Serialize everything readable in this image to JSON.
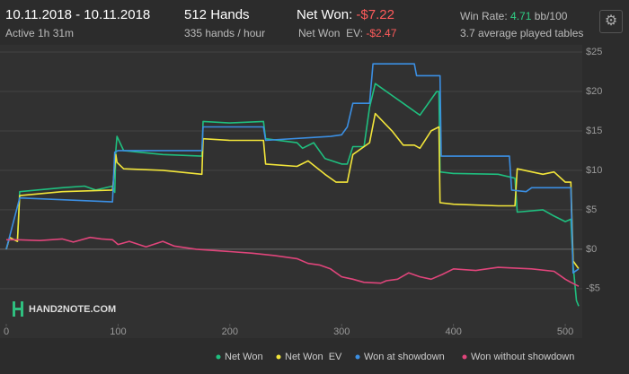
{
  "header": {
    "date_range": "10.11.2018 - 10.11.2018",
    "active": "Active 1h 31m",
    "hands": "512 Hands",
    "hands_per_hour": "335 hands / hour",
    "net_won_label": "Net Won:",
    "net_won": "-$7.22",
    "net_won_ev_label": "Net Won  EV:",
    "net_won_ev": "-$2.47",
    "win_rate_label": "Win Rate:",
    "win_rate": "4.71",
    "win_rate_unit": "bb/100",
    "tables": "3.7 average played tables",
    "logo": "HAND2NOTE.COM"
  },
  "chart_data": {
    "type": "line",
    "xlim": [
      0,
      512
    ],
    "xticks": [
      0,
      100,
      200,
      300,
      400,
      500
    ],
    "ylim": [
      -9,
      25
    ],
    "yticks": [
      {
        "value": 25,
        "label": "$25"
      },
      {
        "value": 20,
        "label": "$20"
      },
      {
        "value": 15,
        "label": "$15"
      },
      {
        "value": 10,
        "label": "$10"
      },
      {
        "value": 5,
        "label": "$5"
      },
      {
        "value": 0,
        "label": "$0"
      },
      {
        "value": -5,
        "label": "-$5"
      }
    ],
    "grid": true,
    "legend": "bottom",
    "series": [
      {
        "name": "Net Won",
        "color": "#1fbf7f",
        "x": [
          0,
          3,
          10,
          12,
          50,
          70,
          80,
          95,
          97,
          98,
          99,
          105,
          140,
          175,
          176,
          200,
          230,
          232,
          260,
          265,
          275,
          285,
          300,
          305,
          310,
          320,
          325,
          330,
          345,
          355,
          370,
          385,
          387,
          388,
          400,
          440,
          455,
          457,
          480,
          490,
          500,
          505,
          507,
          510,
          512
        ],
        "values": [
          0,
          1.5,
          1,
          7.3,
          7.8,
          8,
          7.5,
          8,
          7.2,
          12.5,
          14.3,
          12.5,
          12,
          11.8,
          16.2,
          16,
          16.2,
          14,
          13.5,
          12.8,
          13.5,
          11.5,
          10.8,
          10.8,
          13,
          13,
          18,
          21,
          19.5,
          18.5,
          17,
          20,
          20,
          9.8,
          9.6,
          9.5,
          9,
          4.7,
          5,
          4.2,
          3.5,
          3.8,
          -2,
          -6.5,
          -7.22
        ]
      },
      {
        "name": "Net Won  EV",
        "color": "#f2e53a",
        "x": [
          0,
          3,
          10,
          12,
          50,
          95,
          98,
          99,
          105,
          140,
          175,
          176,
          200,
          230,
          232,
          260,
          270,
          285,
          295,
          305,
          310,
          325,
          330,
          345,
          355,
          365,
          370,
          380,
          387,
          388,
          400,
          440,
          455,
          457,
          480,
          490,
          500,
          505,
          507,
          512
        ],
        "values": [
          0,
          1.5,
          1,
          6.8,
          7.3,
          7.5,
          12,
          11,
          10.2,
          10,
          9.5,
          14,
          13.8,
          13.8,
          10.8,
          10.5,
          11.2,
          9.5,
          8.5,
          8.5,
          12,
          13.5,
          17.2,
          15,
          13.2,
          13.2,
          12.8,
          15,
          15.5,
          5.9,
          5.7,
          5.5,
          5.5,
          10.2,
          9.5,
          9.8,
          8.5,
          8.5,
          -1.5,
          -2.47
        ]
      },
      {
        "name": "Won at showdown",
        "color": "#3b8fe3",
        "x": [
          0,
          12,
          95,
          97,
          100,
          175,
          176,
          230,
          232,
          290,
          300,
          305,
          310,
          325,
          328,
          365,
          367,
          388,
          389,
          450,
          452,
          465,
          470,
          505,
          507,
          512
        ],
        "values": [
          0,
          6.5,
          6,
          12.3,
          12.5,
          12.5,
          15.5,
          15.5,
          13.8,
          14.3,
          14.5,
          15.5,
          18.5,
          18.5,
          23.5,
          23.5,
          22,
          22,
          11.8,
          11.8,
          7.5,
          7.3,
          7.8,
          7.8,
          -3,
          -2.5
        ]
      },
      {
        "name": "Won without showdown",
        "color": "#e0457b",
        "x": [
          0,
          10,
          30,
          50,
          60,
          75,
          85,
          95,
          100,
          110,
          125,
          140,
          150,
          170,
          200,
          220,
          240,
          260,
          270,
          280,
          290,
          300,
          310,
          320,
          335,
          340,
          350,
          360,
          370,
          380,
          390,
          400,
          420,
          440,
          470,
          490,
          500,
          505,
          512
        ],
        "values": [
          1.2,
          1.2,
          1.1,
          1.3,
          0.9,
          1.5,
          1.3,
          1.2,
          0.6,
          1,
          0.3,
          1,
          0.4,
          0,
          -0.3,
          -0.5,
          -0.8,
          -1.2,
          -1.8,
          -2,
          -2.5,
          -3.5,
          -3.8,
          -4.2,
          -4.3,
          -4,
          -3.8,
          -3,
          -3.5,
          -3.8,
          -3.2,
          -2.5,
          -2.7,
          -2.3,
          -2.5,
          -2.8,
          -3.8,
          -4.2,
          -4.7
        ]
      }
    ]
  }
}
